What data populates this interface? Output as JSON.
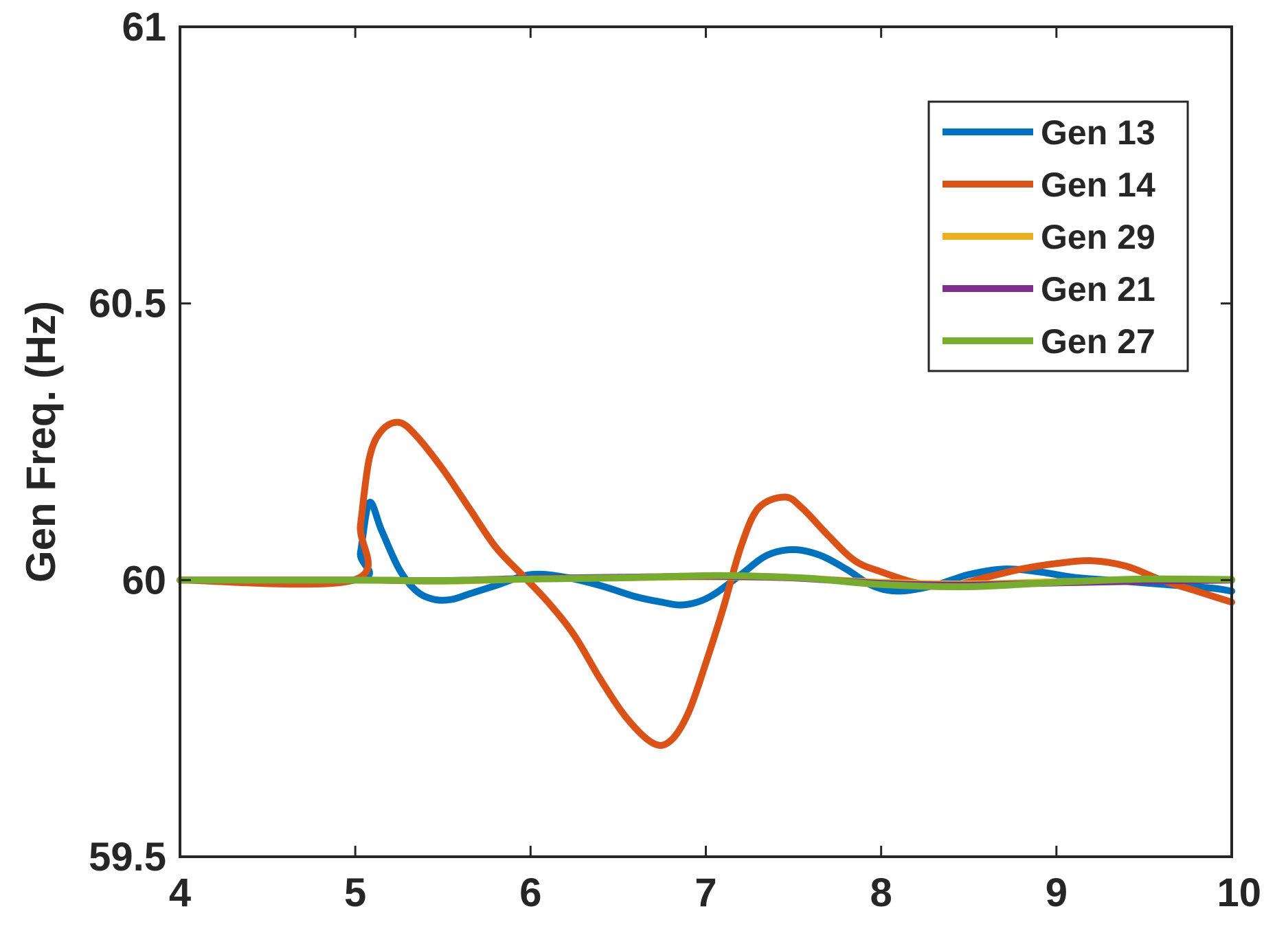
{
  "chart_data": {
    "type": "line",
    "title": "",
    "xlabel": "",
    "ylabel": "Gen Freq. (Hz)",
    "xlim": [
      4,
      10
    ],
    "ylim": [
      59.5,
      61
    ],
    "xticks": [
      "4",
      "5",
      "6",
      "7",
      "8",
      "9",
      "10"
    ],
    "yticks": [
      "59.5",
      "60",
      "60.5",
      "61"
    ],
    "grid": false,
    "legend_position": "top-right",
    "series": [
      {
        "name": "Gen 13",
        "color": "#0072BD",
        "x": [
          4,
          5.0,
          5.03,
          5.08,
          5.15,
          5.25,
          5.35,
          5.45,
          5.55,
          5.65,
          5.8,
          6.0,
          6.2,
          6.4,
          6.6,
          6.75,
          6.85,
          6.95,
          7.05,
          7.2,
          7.35,
          7.5,
          7.65,
          7.8,
          7.95,
          8.1,
          8.3,
          8.5,
          8.7,
          8.9,
          9.1,
          9.3,
          9.5,
          9.7,
          9.9,
          10
        ],
        "y": [
          60.0,
          60.0,
          60.05,
          60.14,
          60.09,
          60.02,
          59.98,
          59.965,
          59.965,
          59.975,
          59.99,
          60.01,
          60.005,
          59.99,
          59.97,
          59.96,
          59.955,
          59.96,
          59.975,
          60.01,
          60.045,
          60.055,
          60.045,
          60.02,
          59.99,
          59.98,
          59.99,
          60.01,
          60.02,
          60.015,
          60.005,
          60.0,
          59.995,
          59.99,
          59.985,
          59.98
        ]
      },
      {
        "name": "Gen 14",
        "color": "#D95319",
        "x": [
          4,
          4.99,
          5.03,
          5.08,
          5.15,
          5.25,
          5.35,
          5.5,
          5.65,
          5.8,
          5.95,
          6.1,
          6.25,
          6.4,
          6.55,
          6.7,
          6.8,
          6.9,
          7.0,
          7.1,
          7.2,
          7.3,
          7.45,
          7.55,
          7.7,
          7.85,
          8.0,
          8.2,
          8.4,
          8.6,
          8.8,
          9.0,
          9.2,
          9.4,
          9.6,
          9.8,
          10
        ],
        "y": [
          60.0,
          60.0,
          60.1,
          60.22,
          60.27,
          60.285,
          60.26,
          60.2,
          60.13,
          60.06,
          60.01,
          59.96,
          59.9,
          59.82,
          59.75,
          59.705,
          59.71,
          59.76,
          59.85,
          59.95,
          60.06,
          60.13,
          60.15,
          60.13,
          60.08,
          60.035,
          60.015,
          59.995,
          59.99,
          60.005,
          60.02,
          60.03,
          60.035,
          60.025,
          60.0,
          59.98,
          59.96
        ]
      },
      {
        "name": "Gen 29",
        "color": "#EDB120",
        "x": [
          4,
          5.0,
          5.5,
          6.0,
          6.5,
          7.0,
          7.5,
          8.0,
          8.5,
          9.0,
          9.5,
          10
        ],
        "y": [
          60.0,
          60.0,
          59.998,
          60.002,
          60.004,
          60.006,
          60.004,
          59.996,
          59.993,
          59.997,
          60.0,
          60.001
        ]
      },
      {
        "name": "Gen 21",
        "color": "#7E2F8E",
        "x": [
          4,
          5.0,
          5.5,
          6.0,
          6.5,
          7.0,
          7.5,
          8.0,
          8.5,
          9.0,
          9.5,
          10
        ],
        "y": [
          60.0,
          60.0,
          59.999,
          60.003,
          60.005,
          60.007,
          60.004,
          59.994,
          59.991,
          59.995,
          59.998,
          60.0
        ]
      },
      {
        "name": "Gen 27",
        "color": "#77AC30",
        "x": [
          4,
          5.0,
          5.5,
          6.0,
          6.5,
          7.0,
          7.3,
          7.6,
          8.0,
          8.5,
          9.0,
          9.5,
          10
        ],
        "y": [
          60.0,
          60.0,
          59.999,
          60.002,
          60.004,
          60.008,
          60.007,
          60.003,
          59.992,
          59.988,
          59.996,
          60.002,
          60.001
        ]
      }
    ]
  }
}
